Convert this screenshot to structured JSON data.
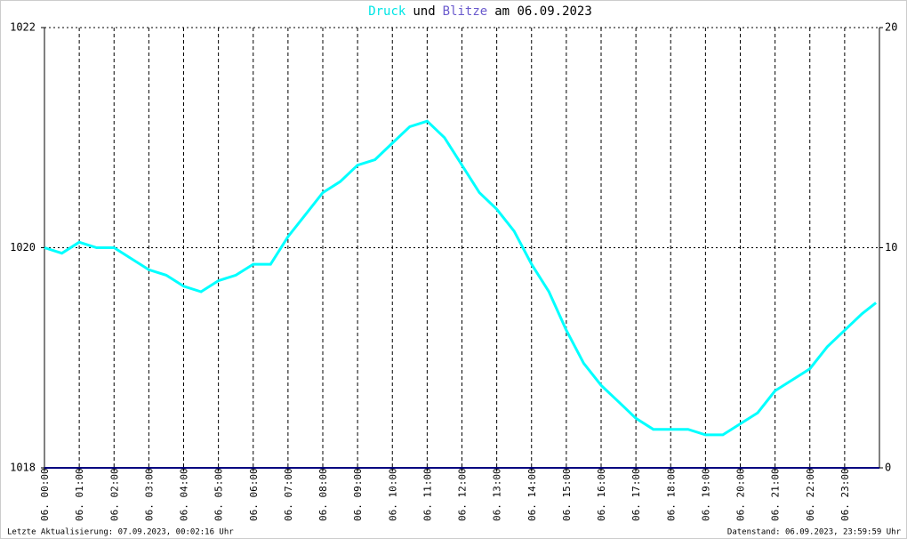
{
  "chart_data": {
    "type": "line",
    "title_parts": [
      {
        "text": "Druck",
        "color": "#00e5e5"
      },
      {
        "text": "und",
        "color": "#000000"
      },
      {
        "text": "Blitze",
        "color": "#6a5acd"
      },
      {
        "text": "am 06.09.2023",
        "color": "#000000"
      }
    ],
    "series": [
      {
        "name": "Druck",
        "color": "#00ffff",
        "x": [
          0,
          0.5,
          1,
          1.5,
          2,
          2.5,
          3,
          3.5,
          4,
          4.5,
          5,
          5.5,
          6,
          6.5,
          7,
          7.5,
          8,
          8.5,
          9,
          9.5,
          10,
          10.5,
          11,
          11.5,
          12,
          12.5,
          13,
          13.5,
          14,
          14.5,
          15,
          15.5,
          16,
          16.5,
          17,
          17.5,
          18,
          18.5,
          19,
          19.5,
          20,
          20.5,
          21,
          21.5,
          22,
          22.5,
          23,
          23.5,
          23.9
        ],
        "values": [
          1020.0,
          1019.95,
          1020.05,
          1020.0,
          1020.0,
          1019.9,
          1019.8,
          1019.75,
          1019.65,
          1019.6,
          1019.7,
          1019.75,
          1019.85,
          1019.85,
          1020.1,
          1020.3,
          1020.5,
          1020.6,
          1020.75,
          1020.8,
          1020.95,
          1021.1,
          1021.15,
          1021.0,
          1020.75,
          1020.5,
          1020.35,
          1020.15,
          1019.85,
          1019.6,
          1019.25,
          1018.95,
          1018.75,
          1018.6,
          1018.45,
          1018.35,
          1018.35,
          1018.35,
          1018.3,
          1018.3,
          1018.4,
          1018.5,
          1018.7,
          1018.8,
          1018.9,
          1019.1,
          1019.25,
          1019.4,
          1019.5
        ]
      },
      {
        "name": "Blitze",
        "color": "#000080",
        "axis": "y2",
        "x": [
          0,
          24
        ],
        "values": [
          0,
          0
        ]
      }
    ],
    "xlim": [
      0,
      24
    ],
    "xticks": [
      {
        "value": 0,
        "label": "06. 00:00"
      },
      {
        "value": 1,
        "label": "06. 01:00"
      },
      {
        "value": 2,
        "label": "06. 02:00"
      },
      {
        "value": 3,
        "label": "06. 03:00"
      },
      {
        "value": 4,
        "label": "06. 04:00"
      },
      {
        "value": 5,
        "label": "06. 05:00"
      },
      {
        "value": 6,
        "label": "06. 06:00"
      },
      {
        "value": 7,
        "label": "06. 07:00"
      },
      {
        "value": 8,
        "label": "06. 08:00"
      },
      {
        "value": 9,
        "label": "06. 09:00"
      },
      {
        "value": 10,
        "label": "06. 10:00"
      },
      {
        "value": 11,
        "label": "06. 11:00"
      },
      {
        "value": 12,
        "label": "06. 12:00"
      },
      {
        "value": 13,
        "label": "06. 13:00"
      },
      {
        "value": 14,
        "label": "06. 14:00"
      },
      {
        "value": 15,
        "label": "06. 15:00"
      },
      {
        "value": 16,
        "label": "06. 16:00"
      },
      {
        "value": 17,
        "label": "06. 17:00"
      },
      {
        "value": 18,
        "label": "06. 18:00"
      },
      {
        "value": 19,
        "label": "06. 19:00"
      },
      {
        "value": 20,
        "label": "06. 20:00"
      },
      {
        "value": 21,
        "label": "06. 21:00"
      },
      {
        "value": 22,
        "label": "06. 22:00"
      },
      {
        "value": 23,
        "label": "06. 23:00"
      }
    ],
    "ylim": [
      1018,
      1022
    ],
    "yticks": [
      1018,
      1020,
      1022
    ],
    "y2lim": [
      0,
      20
    ],
    "y2ticks": [
      0,
      10,
      20
    ],
    "grid": true,
    "footer_left": "Letzte Aktualisierung: 07.09.2023, 00:02:16 Uhr",
    "footer_right": "Datenstand: 06.09.2023, 23:59:59 Uhr"
  }
}
